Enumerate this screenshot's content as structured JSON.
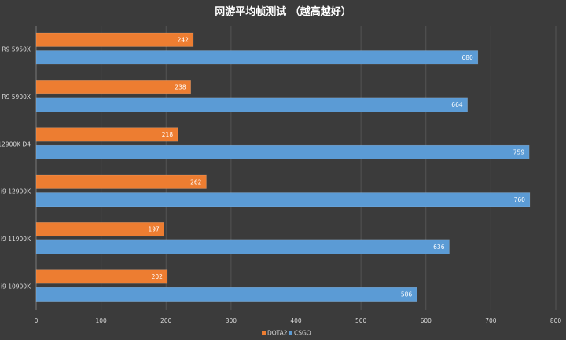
{
  "chart_data": {
    "type": "bar",
    "orientation": "horizontal",
    "title": "网游平均帧测试 （越高越好）",
    "categories": [
      "R9 5950X",
      "R9 5900X",
      "i9 12900K D4",
      "i9 12900K",
      "i9 11900K",
      "i9 10900K"
    ],
    "series": [
      {
        "name": "DOTA2",
        "color": "#ed7d31",
        "values": [
          242,
          238,
          218,
          262,
          197,
          202
        ]
      },
      {
        "name": "CSGO",
        "color": "#5b9bd5",
        "values": [
          680,
          664,
          759,
          760,
          636,
          586
        ]
      }
    ],
    "xlim": [
      0,
      800
    ],
    "xticks": [
      0,
      100,
      200,
      300,
      400,
      500,
      600,
      700,
      800
    ],
    "grid": true,
    "legend_position": "bottom",
    "colors": {
      "background": "#3b3b3b",
      "grid": "#545454",
      "text": "#d9d9d9",
      "title": "#ffffff"
    }
  }
}
